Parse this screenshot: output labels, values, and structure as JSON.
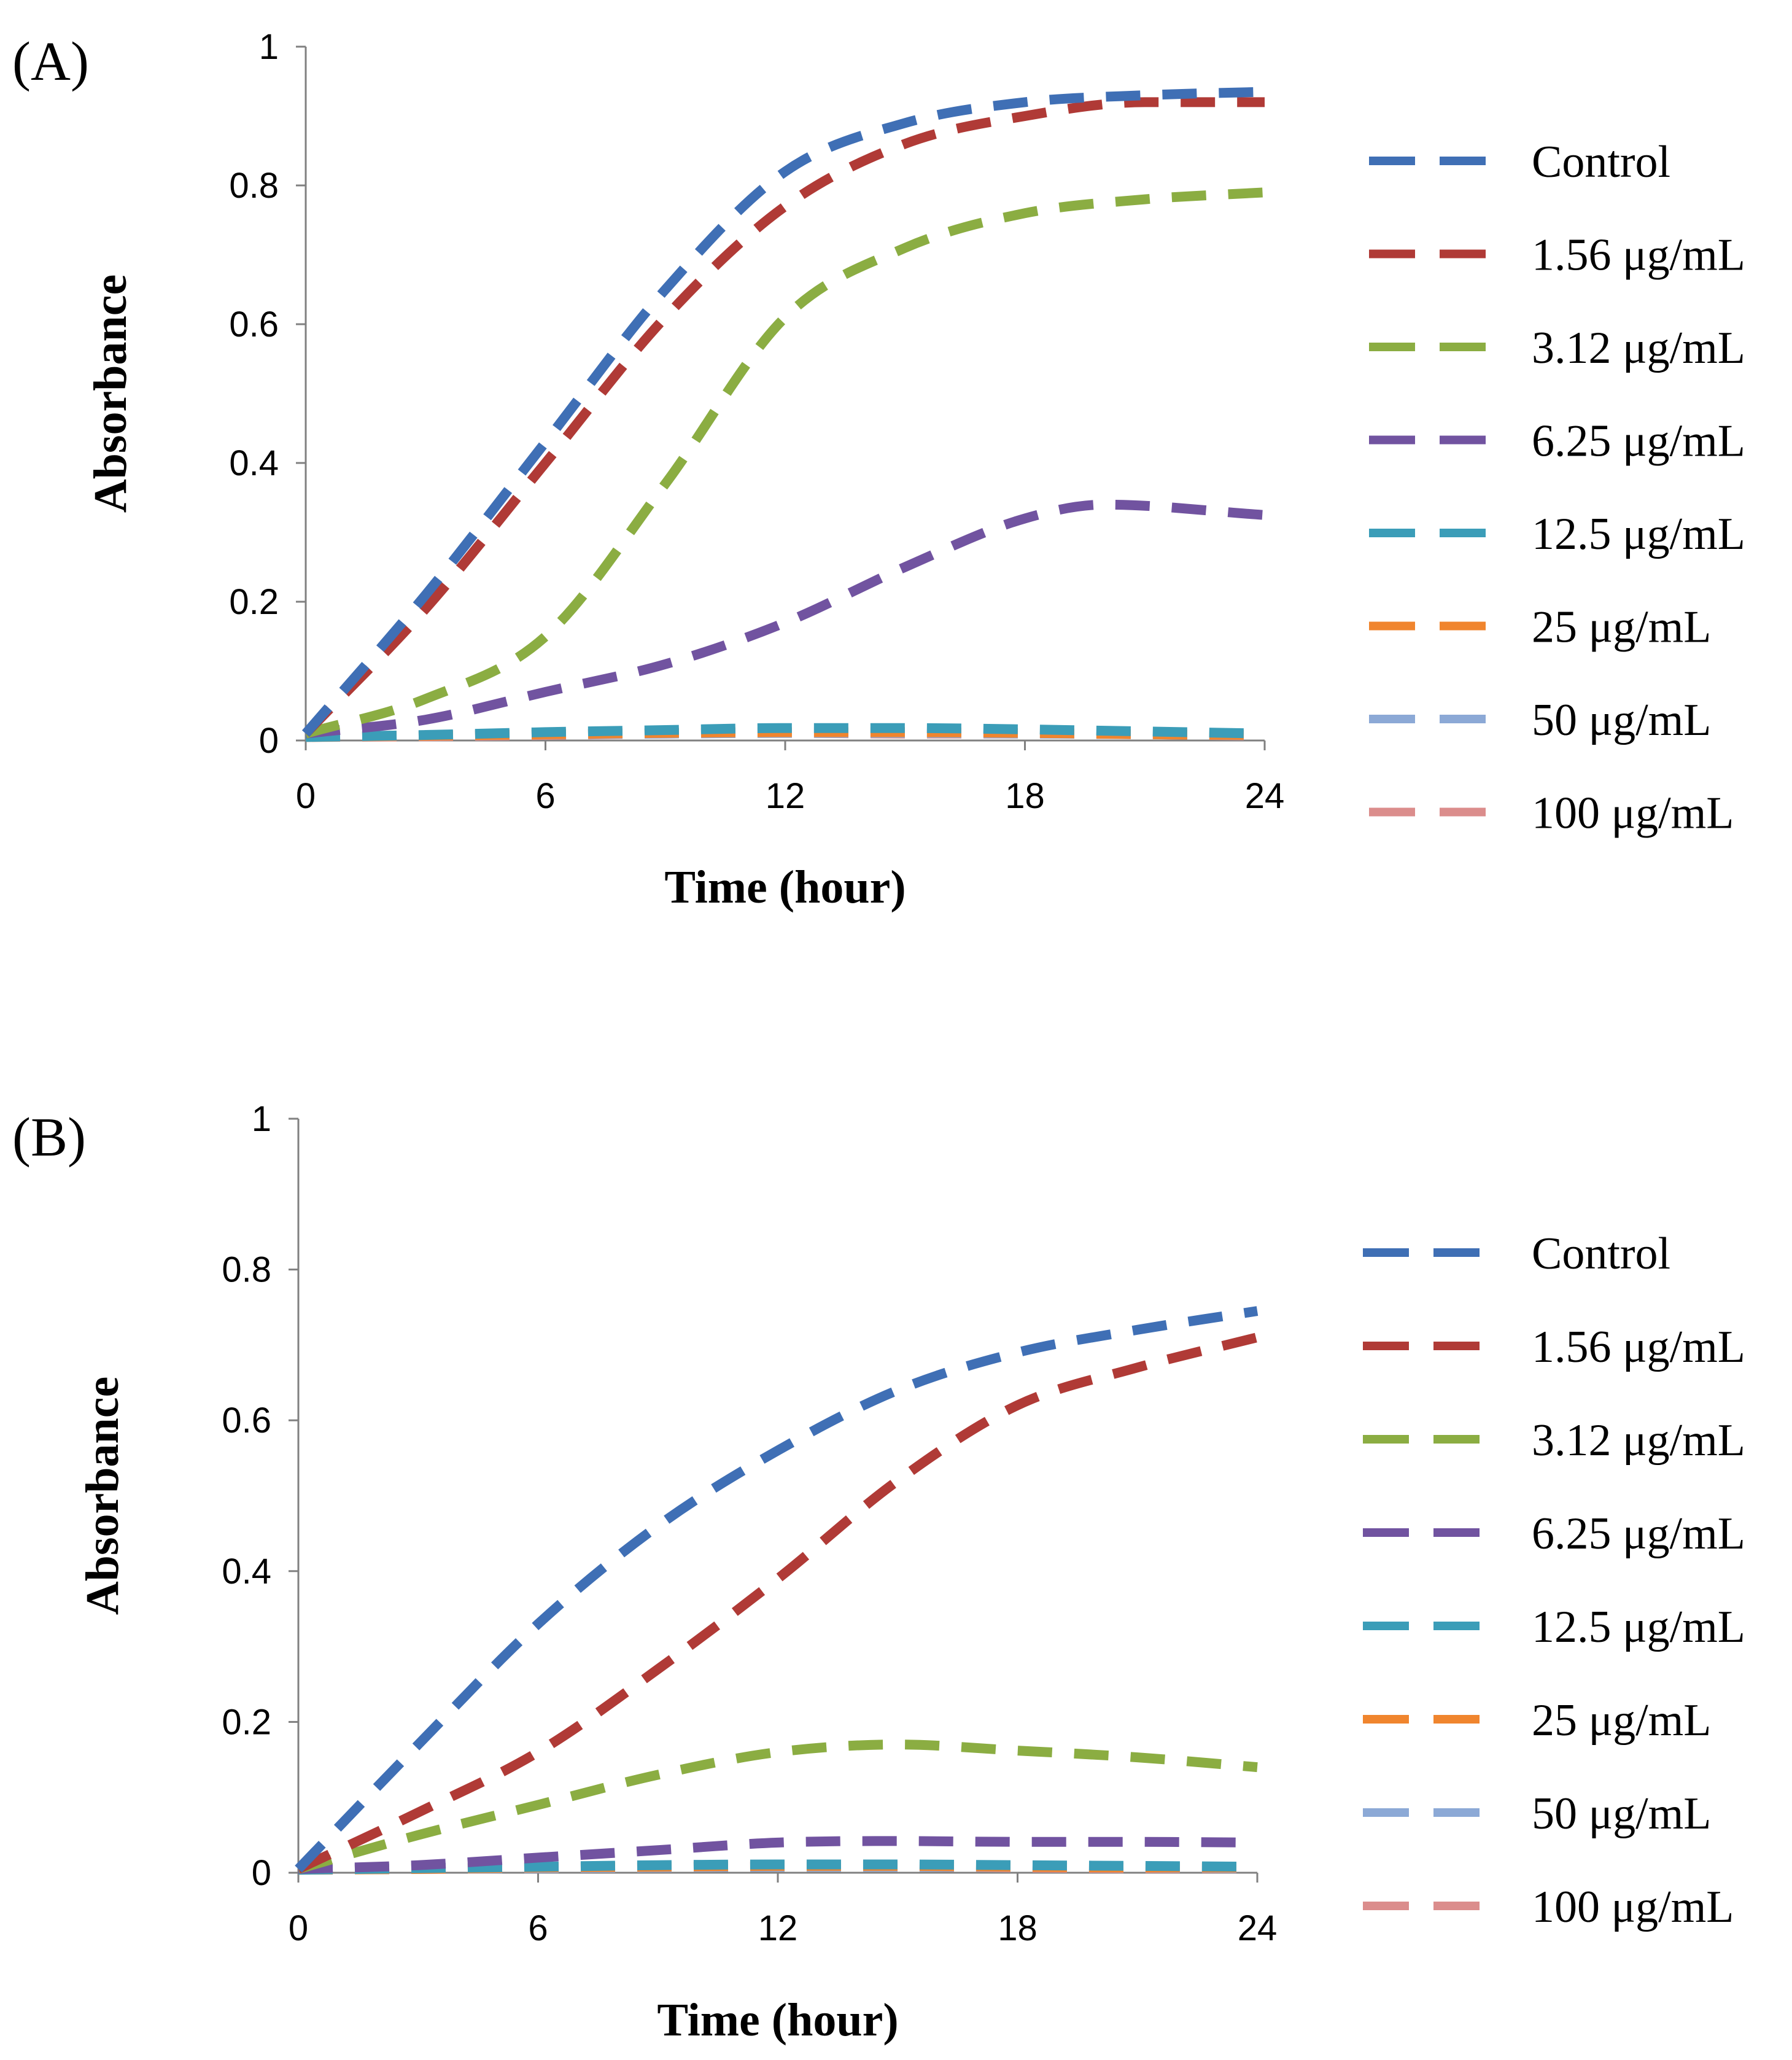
{
  "chart_data": [
    {
      "type": "line",
      "panel_label": "(A)",
      "xlabel": "Time (hour)",
      "ylabel": "Absorbance",
      "xlim": [
        0,
        24
      ],
      "ylim": [
        0,
        1
      ],
      "xticks": [
        "0",
        "6",
        "12",
        "18",
        "24"
      ],
      "yticks": [
        "0",
        "0.2",
        "0.4",
        "0.6",
        "0.8",
        "1"
      ],
      "legend_position": "right",
      "series": [
        {
          "name": "Control",
          "color": "#3F6FB5",
          "points": [
            [
              0,
              0.01
            ],
            [
              3,
              0.21
            ],
            [
              6,
              0.43
            ],
            [
              9,
              0.65
            ],
            [
              12,
              0.82
            ],
            [
              15,
              0.89
            ],
            [
              18,
              0.92
            ],
            [
              21,
              0.93
            ],
            [
              24,
              0.935
            ]
          ]
        },
        {
          "name": "1.56 μg/mL",
          "color": "#B03A36",
          "points": [
            [
              0,
              0.01
            ],
            [
              3,
              0.19
            ],
            [
              6,
              0.4
            ],
            [
              9,
              0.61
            ],
            [
              12,
              0.77
            ],
            [
              15,
              0.86
            ],
            [
              18,
              0.9
            ],
            [
              21,
              0.92
            ],
            [
              24,
              0.92
            ]
          ]
        },
        {
          "name": "3.12 μg/mL",
          "color": "#8BAD42",
          "points": [
            [
              0,
              0.01
            ],
            [
              3,
              0.06
            ],
            [
              6,
              0.15
            ],
            [
              9,
              0.37
            ],
            [
              12,
              0.61
            ],
            [
              15,
              0.71
            ],
            [
              18,
              0.76
            ],
            [
              21,
              0.78
            ],
            [
              24,
              0.79
            ]
          ]
        },
        {
          "name": "6.25 μg/mL",
          "color": "#7153A0",
          "points": [
            [
              0,
              0.01
            ],
            [
              3,
              0.03
            ],
            [
              6,
              0.07
            ],
            [
              9,
              0.11
            ],
            [
              12,
              0.17
            ],
            [
              15,
              0.25
            ],
            [
              18,
              0.32
            ],
            [
              20,
              0.34
            ],
            [
              24,
              0.325
            ]
          ]
        },
        {
          "name": "12.5 μg/mL",
          "color": "#3B9DB8",
          "points": [
            [
              0,
              0.005
            ],
            [
              3,
              0.008
            ],
            [
              6,
              0.012
            ],
            [
              9,
              0.015
            ],
            [
              12,
              0.018
            ],
            [
              15,
              0.018
            ],
            [
              18,
              0.016
            ],
            [
              21,
              0.013
            ],
            [
              24,
              0.01
            ]
          ]
        },
        {
          "name": "25 μg/mL",
          "color": "#F0852E",
          "points": [
            [
              0,
              0.005
            ],
            [
              3,
              0.007
            ],
            [
              6,
              0.009
            ],
            [
              9,
              0.011
            ],
            [
              12,
              0.012
            ],
            [
              15,
              0.012
            ],
            [
              18,
              0.011
            ],
            [
              21,
              0.009
            ],
            [
              24,
              0.008
            ]
          ]
        },
        {
          "name": "50 μg/mL",
          "color": "#8CA9D6",
          "points": [
            [
              0,
              0.005
            ],
            [
              3,
              0.007
            ],
            [
              6,
              0.009
            ],
            [
              9,
              0.01
            ],
            [
              12,
              0.011
            ],
            [
              15,
              0.011
            ],
            [
              18,
              0.01
            ],
            [
              21,
              0.009
            ],
            [
              24,
              0.008
            ]
          ]
        },
        {
          "name": "100 μg/mL",
          "color": "#DB8D8C",
          "points": [
            [
              0,
              0.005
            ],
            [
              3,
              0.006
            ],
            [
              6,
              0.008
            ],
            [
              9,
              0.01
            ],
            [
              12,
              0.011
            ],
            [
              15,
              0.01
            ],
            [
              18,
              0.01
            ],
            [
              21,
              0.009
            ],
            [
              24,
              0.007
            ]
          ]
        }
      ]
    },
    {
      "type": "line",
      "panel_label": "(B)",
      "xlabel": "Time (hour)",
      "ylabel": "Absorbance",
      "xlim": [
        0,
        24
      ],
      "ylim": [
        0,
        1
      ],
      "xticks": [
        "0",
        "6",
        "12",
        "18",
        "24"
      ],
      "yticks": [
        "0",
        "0.2",
        "0.4",
        "0.6",
        "0.8",
        "1"
      ],
      "legend_position": "right",
      "series": [
        {
          "name": "Control",
          "color": "#3F6FB5",
          "points": [
            [
              0,
              0.005
            ],
            [
              3,
              0.17
            ],
            [
              6,
              0.33
            ],
            [
              9,
              0.46
            ],
            [
              12,
              0.56
            ],
            [
              15,
              0.64
            ],
            [
              18,
              0.69
            ],
            [
              21,
              0.72
            ],
            [
              24,
              0.745
            ]
          ]
        },
        {
          "name": "1.56 μg/mL",
          "color": "#B03A36",
          "points": [
            [
              0,
              0.005
            ],
            [
              3,
              0.08
            ],
            [
              6,
              0.16
            ],
            [
              9,
              0.27
            ],
            [
              12,
              0.39
            ],
            [
              15,
              0.52
            ],
            [
              18,
              0.62
            ],
            [
              21,
              0.67
            ],
            [
              24,
              0.71
            ]
          ]
        },
        {
          "name": "3.12 μg/mL",
          "color": "#8BAD42",
          "points": [
            [
              0,
              0.005
            ],
            [
              3,
              0.05
            ],
            [
              6,
              0.09
            ],
            [
              9,
              0.13
            ],
            [
              12,
              0.16
            ],
            [
              15,
              0.17
            ],
            [
              18,
              0.162
            ],
            [
              21,
              0.153
            ],
            [
              24,
              0.14
            ]
          ]
        },
        {
          "name": "6.25 μg/mL",
          "color": "#7153A0",
          "points": [
            [
              0,
              0.005
            ],
            [
              3,
              0.01
            ],
            [
              6,
              0.02
            ],
            [
              9,
              0.03
            ],
            [
              12,
              0.04
            ],
            [
              15,
              0.042
            ],
            [
              18,
              0.041
            ],
            [
              21,
              0.041
            ],
            [
              24,
              0.04
            ]
          ]
        },
        {
          "name": "12.5 μg/mL",
          "color": "#3B9DB8",
          "points": [
            [
              0,
              0.004
            ],
            [
              3,
              0.006
            ],
            [
              6,
              0.008
            ],
            [
              9,
              0.01
            ],
            [
              12,
              0.011
            ],
            [
              15,
              0.011
            ],
            [
              18,
              0.01
            ],
            [
              21,
              0.009
            ],
            [
              24,
              0.008
            ]
          ]
        },
        {
          "name": "25 μg/mL",
          "color": "#F0852E",
          "points": [
            [
              0,
              0.004
            ],
            [
              3,
              0.005
            ],
            [
              6,
              0.007
            ],
            [
              9,
              0.008
            ],
            [
              12,
              0.009
            ],
            [
              15,
              0.009
            ],
            [
              18,
              0.008
            ],
            [
              21,
              0.007
            ],
            [
              24,
              0.007
            ]
          ]
        },
        {
          "name": "50 μg/mL",
          "color": "#8CA9D6",
          "points": [
            [
              0,
              0.004
            ],
            [
              3,
              0.005
            ],
            [
              6,
              0.006
            ],
            [
              9,
              0.007
            ],
            [
              12,
              0.008
            ],
            [
              15,
              0.008
            ],
            [
              18,
              0.008
            ],
            [
              21,
              0.007
            ],
            [
              24,
              0.006
            ]
          ]
        },
        {
          "name": "100 μg/mL",
          "color": "#DB8D8C",
          "points": [
            [
              0,
              0.004
            ],
            [
              3,
              0.005
            ],
            [
              6,
              0.006
            ],
            [
              9,
              0.007
            ],
            [
              12,
              0.008
            ],
            [
              15,
              0.008
            ],
            [
              18,
              0.007
            ],
            [
              21,
              0.006
            ],
            [
              24,
              0.006
            ]
          ]
        }
      ]
    }
  ]
}
